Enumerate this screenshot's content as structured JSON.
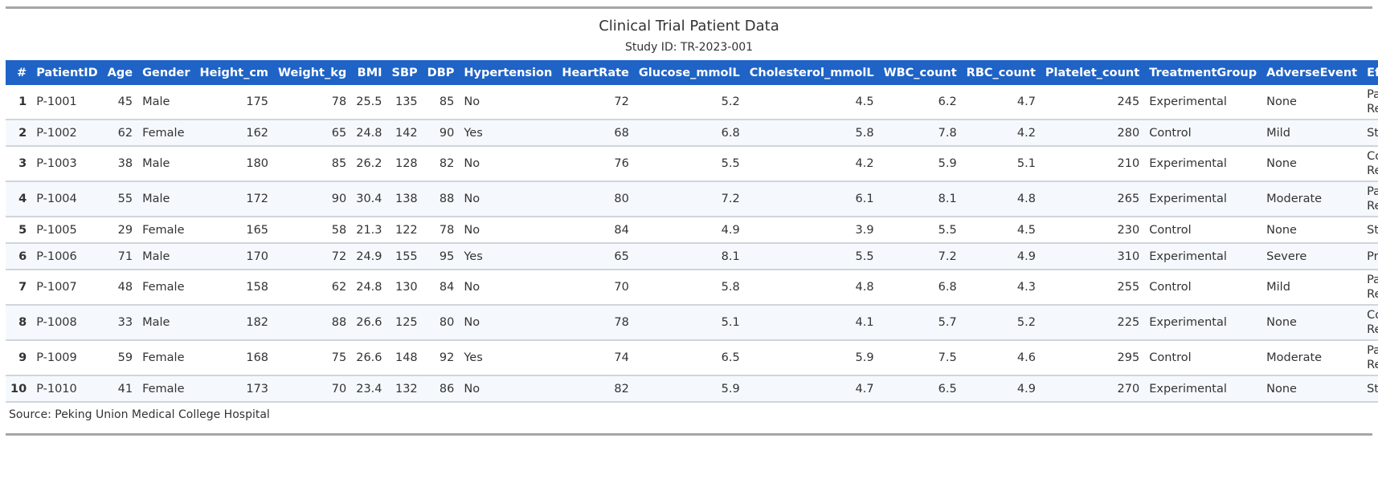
{
  "title": "Clinical Trial Patient Data",
  "subtitle": "Study ID: TR-2023-001",
  "columns": [
    "#",
    "PatientID",
    "Age",
    "Gender",
    "Height_cm",
    "Weight_kg",
    "BMI",
    "SBP",
    "DBP",
    "Hypertension",
    "HeartRate",
    "Glucose_mmolL",
    "Cholesterol_mmolL",
    "WBC_count",
    "RBC_count",
    "Platelet_count",
    "TreatmentGroup",
    "AdverseEvent",
    "Efficacy"
  ],
  "rows": [
    [
      "1",
      "P-1001",
      "45",
      "Male",
      "175",
      "78",
      "25.5",
      "135",
      "85",
      "No",
      "72",
      "5.2",
      "4.5",
      "6.2",
      "4.7",
      "245",
      "Experimental",
      "None",
      "Partial Response"
    ],
    [
      "2",
      "P-1002",
      "62",
      "Female",
      "162",
      "65",
      "24.8",
      "142",
      "90",
      "Yes",
      "68",
      "6.8",
      "5.8",
      "7.8",
      "4.2",
      "280",
      "Control",
      "Mild",
      "Stable"
    ],
    [
      "3",
      "P-1003",
      "38",
      "Male",
      "180",
      "85",
      "26.2",
      "128",
      "82",
      "No",
      "76",
      "5.5",
      "4.2",
      "5.9",
      "5.1",
      "210",
      "Experimental",
      "None",
      "Complete Response"
    ],
    [
      "4",
      "P-1004",
      "55",
      "Male",
      "172",
      "90",
      "30.4",
      "138",
      "88",
      "No",
      "80",
      "7.2",
      "6.1",
      "8.1",
      "4.8",
      "265",
      "Experimental",
      "Moderate",
      "Partial Response"
    ],
    [
      "5",
      "P-1005",
      "29",
      "Female",
      "165",
      "58",
      "21.3",
      "122",
      "78",
      "No",
      "84",
      "4.9",
      "3.9",
      "5.5",
      "4.5",
      "230",
      "Control",
      "None",
      "Stable"
    ],
    [
      "6",
      "P-1006",
      "71",
      "Male",
      "170",
      "72",
      "24.9",
      "155",
      "95",
      "Yes",
      "65",
      "8.1",
      "5.5",
      "7.2",
      "4.9",
      "310",
      "Experimental",
      "Severe",
      "Progression"
    ],
    [
      "7",
      "P-1007",
      "48",
      "Female",
      "158",
      "62",
      "24.8",
      "130",
      "84",
      "No",
      "70",
      "5.8",
      "4.8",
      "6.8",
      "4.3",
      "255",
      "Control",
      "Mild",
      "Partial Response"
    ],
    [
      "8",
      "P-1008",
      "33",
      "Male",
      "182",
      "88",
      "26.6",
      "125",
      "80",
      "No",
      "78",
      "5.1",
      "4.1",
      "5.7",
      "5.2",
      "225",
      "Experimental",
      "None",
      "Complete Response"
    ],
    [
      "9",
      "P-1009",
      "59",
      "Female",
      "168",
      "75",
      "26.6",
      "148",
      "92",
      "Yes",
      "74",
      "6.5",
      "5.9",
      "7.5",
      "4.6",
      "295",
      "Control",
      "Moderate",
      "Partial Response"
    ],
    [
      "10",
      "P-1010",
      "41",
      "Female",
      "173",
      "70",
      "23.4",
      "132",
      "86",
      "No",
      "82",
      "5.9",
      "4.7",
      "6.5",
      "4.9",
      "270",
      "Experimental",
      "None",
      "Stable"
    ]
  ],
  "source": "Source: Peking Union Medical College Hospital",
  "colors": {
    "header_bg": "#1f63c6",
    "stripe": "#f5f9fd",
    "rule": "#a6a6a6"
  }
}
